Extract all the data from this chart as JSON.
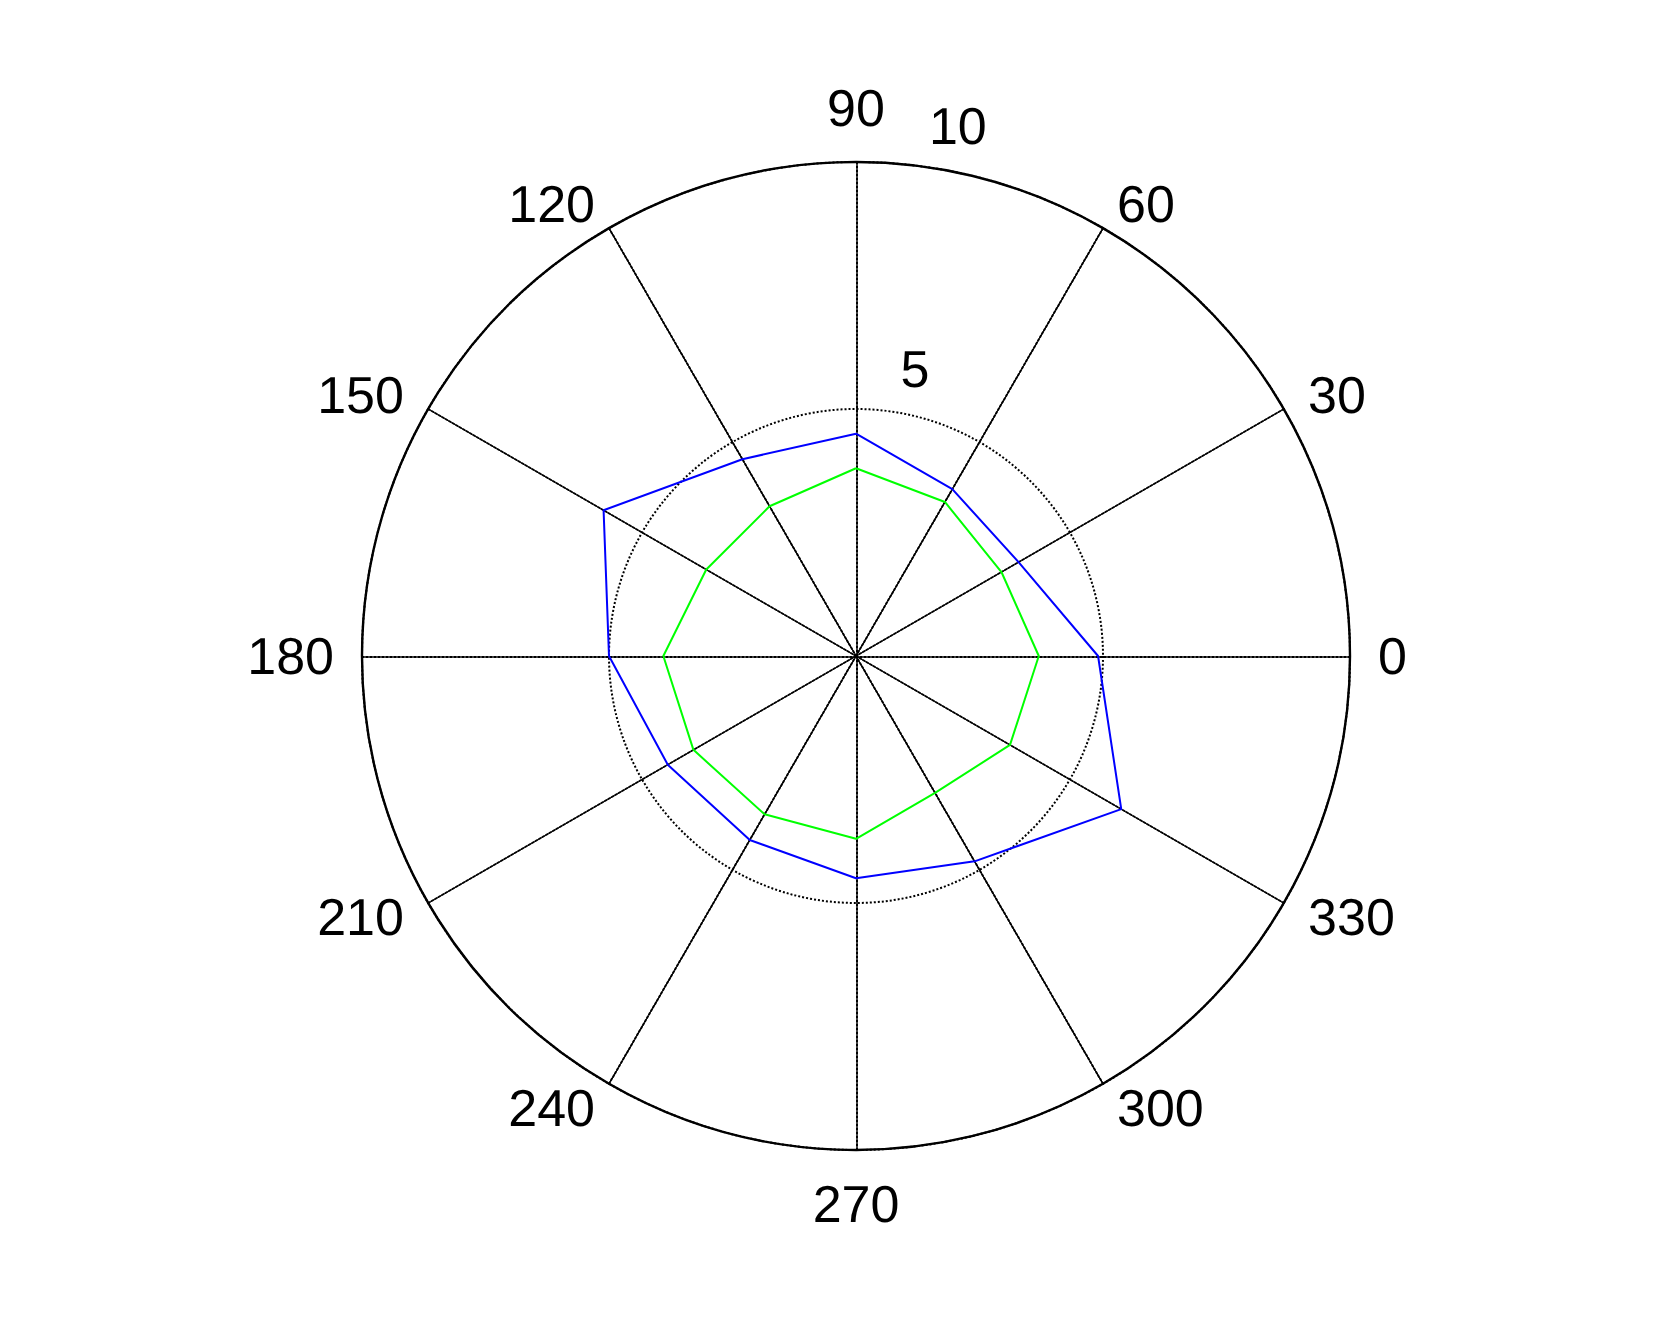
{
  "chart_data": {
    "type": "radar",
    "categories": [
      "90",
      "60",
      "30",
      "0",
      "330",
      "300",
      "270",
      "240",
      "210",
      "180",
      "150",
      "120"
    ],
    "series": [
      {
        "color": "#0000ff",
        "values": [
          4.5,
          3.9,
          3.8,
          4.9,
          6.2,
          4.8,
          4.5,
          4.3,
          4.4,
          5.0,
          5.9,
          4.6
        ]
      },
      {
        "color": "#00ff00",
        "values": [
          3.8,
          3.6,
          3.4,
          3.7,
          3.6,
          3.2,
          3.7,
          3.7,
          3.8,
          3.9,
          3.5,
          3.5
        ]
      }
    ],
    "ylim": [
      0,
      10
    ],
    "yticks": [
      5,
      10
    ],
    "grid": true,
    "line_style": "solid",
    "marker": "none"
  }
}
